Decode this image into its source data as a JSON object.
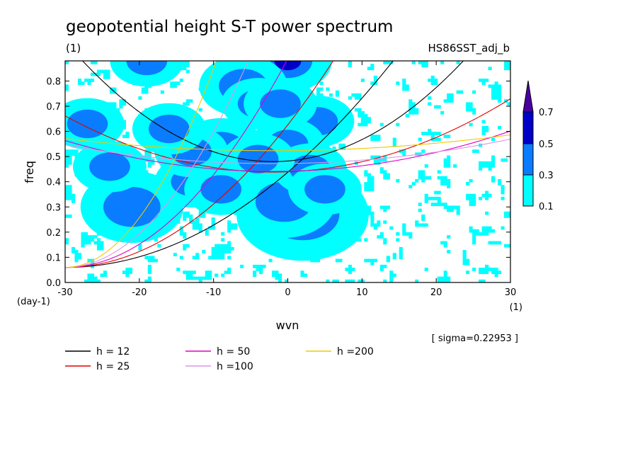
{
  "chart_data": {
    "type": "contour",
    "title": "geopotential height S-T power spectrum",
    "subtitle_left": "(1)",
    "subtitle_right": "HS86SST_adj_b",
    "xlabel": "wvn",
    "ylabel": "freq",
    "x_unit": "(1)",
    "y_unit": "(day-1)",
    "xlim": [
      -30,
      30
    ],
    "ylim": [
      0,
      0.88
    ],
    "x_ticks": [
      -30,
      -20,
      -10,
      0,
      10,
      20,
      30
    ],
    "x_tick_labels": [
      "-30",
      "-20",
      "-10",
      "0",
      "10",
      "20",
      "30"
    ],
    "y_ticks": [
      0.0,
      0.1,
      0.2,
      0.3,
      0.4,
      0.5,
      0.6,
      0.7,
      0.8
    ],
    "y_tick_labels": [
      "0.0",
      "0.1",
      "0.2",
      "0.3",
      "0.4",
      "0.5",
      "0.6",
      "0.7",
      "0.8"
    ],
    "sigma_label": "[ sigma=0.22953 ]",
    "contour_levels": [
      0.1,
      0.3,
      0.5,
      0.7
    ],
    "colorbar_labels": [
      "0.1",
      "0.3",
      "0.5",
      "0.7"
    ],
    "colorbar_colors": [
      "#00ffff",
      "#0a7cff",
      "#0000c8",
      "#4b00a0"
    ],
    "dispersion_curves": [
      {
        "name": "h = 12",
        "h": 12,
        "color": "#000000"
      },
      {
        "name": "h = 25",
        "h": 25,
        "color": "#e00000"
      },
      {
        "name": "h = 50",
        "h": 50,
        "color": "#e000c8"
      },
      {
        "name": "h =100",
        "h": 100,
        "color": "#dc96e6"
      },
      {
        "name": "h =200",
        "h": 200,
        "color": "#f0c800"
      }
    ],
    "blobs": [
      {
        "x": 0.0,
        "y": 0.88,
        "r": 0.6,
        "level": 3
      },
      {
        "x": -21.0,
        "y": 0.3,
        "r": 0.7,
        "level": 2
      },
      {
        "x": -9.0,
        "y": 0.53,
        "r": 0.6,
        "level": 2
      },
      {
        "x": 2.0,
        "y": 0.27,
        "r": 0.9,
        "level": 3
      },
      {
        "x": -0.5,
        "y": 0.32,
        "r": 0.7,
        "level": 2
      },
      {
        "x": 4.0,
        "y": 0.64,
        "r": 0.5,
        "level": 2
      },
      {
        "x": -6.0,
        "y": 0.78,
        "r": 0.6,
        "level": 2
      },
      {
        "x": -4.0,
        "y": 0.71,
        "r": 0.5,
        "level": 2
      },
      {
        "x": -1.0,
        "y": 0.71,
        "r": 0.5,
        "level": 2
      },
      {
        "x": -13.0,
        "y": 0.4,
        "r": 0.5,
        "level": 2
      },
      {
        "x": -9.0,
        "y": 0.37,
        "r": 0.5,
        "level": 2
      },
      {
        "x": 0.0,
        "y": 0.55,
        "r": 0.5,
        "level": 2
      },
      {
        "x": 3.0,
        "y": 0.45,
        "r": 0.5,
        "level": 2
      },
      {
        "x": -24.0,
        "y": 0.46,
        "r": 0.5,
        "level": 2
      },
      {
        "x": 5.0,
        "y": 0.37,
        "r": 0.5,
        "level": 2
      },
      {
        "x": -13.0,
        "y": 0.52,
        "r": 0.5,
        "level": 2
      },
      {
        "x": -19.0,
        "y": 0.88,
        "r": 0.5,
        "level": 2
      },
      {
        "x": -27.0,
        "y": 0.63,
        "r": 0.5,
        "level": 2
      },
      {
        "x": -4.0,
        "y": 0.49,
        "r": 0.5,
        "level": 2
      },
      {
        "x": -16.0,
        "y": 0.61,
        "r": 0.5,
        "level": 2
      }
    ]
  }
}
